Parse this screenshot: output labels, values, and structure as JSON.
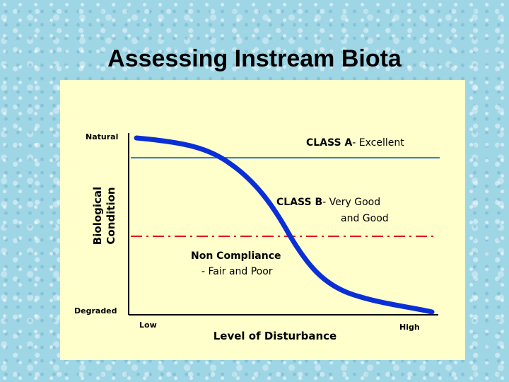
{
  "slide": {
    "title": "Assessing Instream Biota"
  },
  "diagram": {
    "y_axis_title_line1": "Biological",
    "y_axis_title_line2": "Condition",
    "y_top_label": "Natural",
    "y_bottom_label": "Degraded",
    "x_axis_title": "Level of Disturbance",
    "x_left_label": "Low",
    "x_right_label": "High",
    "class_a_bold": "CLASS A",
    "class_a_desc": "- Excellent",
    "class_b_bold": "CLASS B",
    "class_b_desc1": "- Very Good",
    "class_b_desc2": "and Good",
    "noncompliance_line1": "Non Compliance",
    "noncompliance_line2": "- Fair and Poor",
    "colors": {
      "curve": "#0b2fd6",
      "class_a_threshold": "#3a7fd0",
      "compliance_threshold": "#e0141e",
      "panel_background": "#ffffcc"
    }
  }
}
